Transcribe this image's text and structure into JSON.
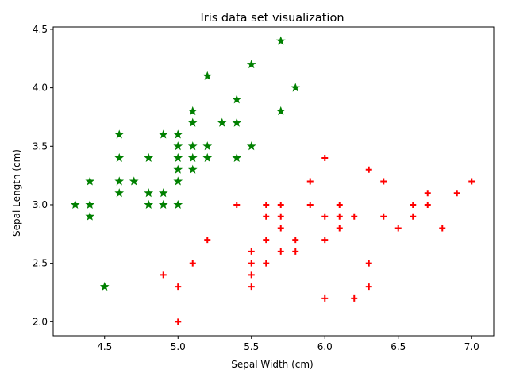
{
  "chart_data": {
    "type": "scatter",
    "title": "Iris data set visualization",
    "xlabel": "Sepal Width (cm)",
    "ylabel": "Sepal Length (cm)",
    "xlim": [
      4.15,
      7.15
    ],
    "ylim": [
      1.88,
      4.52
    ],
    "xticks": [
      4.5,
      5.0,
      5.5,
      6.0,
      6.5,
      7.0
    ],
    "xtick_labels": [
      "4.5",
      "5.0",
      "5.5",
      "6.0",
      "6.5",
      "7.0"
    ],
    "yticks": [
      2.0,
      2.5,
      3.0,
      3.5,
      4.0,
      4.5
    ],
    "ytick_labels": [
      "2.0",
      "2.5",
      "3.0",
      "3.5",
      "4.0",
      "4.5"
    ],
    "grid": false,
    "series": [
      {
        "marker": "star",
        "color": "#008000",
        "points": [
          [
            4.3,
            3.0
          ],
          [
            4.4,
            3.2
          ],
          [
            4.4,
            3.0
          ],
          [
            4.4,
            2.9
          ],
          [
            4.5,
            2.3
          ],
          [
            4.6,
            3.6
          ],
          [
            4.6,
            3.4
          ],
          [
            4.6,
            3.2
          ],
          [
            4.6,
            3.1
          ],
          [
            4.7,
            3.2
          ],
          [
            4.8,
            3.4
          ],
          [
            4.8,
            3.1
          ],
          [
            4.8,
            3.0
          ],
          [
            4.9,
            3.6
          ],
          [
            4.9,
            3.1
          ],
          [
            4.9,
            3.0
          ],
          [
            5.0,
            3.6
          ],
          [
            5.0,
            3.5
          ],
          [
            5.0,
            3.4
          ],
          [
            5.0,
            3.3
          ],
          [
            5.0,
            3.2
          ],
          [
            5.0,
            3.0
          ],
          [
            5.1,
            3.8
          ],
          [
            5.1,
            3.7
          ],
          [
            5.1,
            3.5
          ],
          [
            5.1,
            3.4
          ],
          [
            5.1,
            3.3
          ],
          [
            5.2,
            4.1
          ],
          [
            5.2,
            3.5
          ],
          [
            5.2,
            3.4
          ],
          [
            5.3,
            3.7
          ],
          [
            5.4,
            3.9
          ],
          [
            5.4,
            3.7
          ],
          [
            5.4,
            3.4
          ],
          [
            5.5,
            4.2
          ],
          [
            5.5,
            3.5
          ],
          [
            5.7,
            4.4
          ],
          [
            5.7,
            3.8
          ],
          [
            5.8,
            4.0
          ]
        ]
      },
      {
        "marker": "plus",
        "color": "#ff0000",
        "points": [
          [
            4.9,
            2.4
          ],
          [
            5.0,
            2.3
          ],
          [
            5.0,
            2.0
          ],
          [
            5.1,
            2.5
          ],
          [
            5.2,
            2.7
          ],
          [
            5.4,
            3.0
          ],
          [
            5.5,
            2.6
          ],
          [
            5.5,
            2.5
          ],
          [
            5.5,
            2.4
          ],
          [
            5.5,
            2.3
          ],
          [
            5.6,
            3.0
          ],
          [
            5.6,
            2.9
          ],
          [
            5.6,
            2.7
          ],
          [
            5.6,
            2.5
          ],
          [
            5.7,
            3.0
          ],
          [
            5.7,
            2.9
          ],
          [
            5.7,
            2.8
          ],
          [
            5.7,
            2.6
          ],
          [
            5.8,
            2.7
          ],
          [
            5.8,
            2.6
          ],
          [
            5.9,
            3.2
          ],
          [
            5.9,
            3.0
          ],
          [
            6.0,
            3.4
          ],
          [
            6.0,
            2.9
          ],
          [
            6.0,
            2.7
          ],
          [
            6.0,
            2.2
          ],
          [
            6.1,
            3.0
          ],
          [
            6.1,
            2.9
          ],
          [
            6.1,
            2.8
          ],
          [
            6.2,
            2.9
          ],
          [
            6.2,
            2.2
          ],
          [
            6.3,
            3.3
          ],
          [
            6.3,
            2.5
          ],
          [
            6.3,
            2.3
          ],
          [
            6.4,
            3.2
          ],
          [
            6.4,
            2.9
          ],
          [
            6.5,
            2.8
          ],
          [
            6.6,
            3.0
          ],
          [
            6.6,
            2.9
          ],
          [
            6.7,
            3.1
          ],
          [
            6.7,
            3.0
          ],
          [
            6.8,
            2.8
          ],
          [
            6.9,
            3.1
          ],
          [
            7.0,
            3.2
          ]
        ]
      }
    ]
  }
}
